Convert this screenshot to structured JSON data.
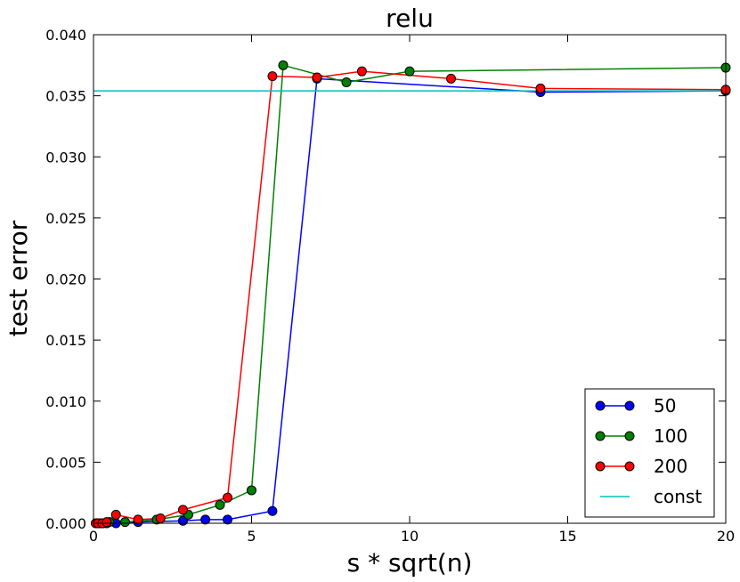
{
  "chart_data": {
    "type": "line",
    "title": "relu",
    "xlabel": "s * sqrt(n)",
    "ylabel": "test error",
    "xlim": [
      0,
      20
    ],
    "ylim": [
      0,
      0.04
    ],
    "x_ticks": [
      "0",
      "5",
      "10",
      "15",
      "20"
    ],
    "y_ticks": [
      "0.000",
      "0.005",
      "0.010",
      "0.015",
      "0.020",
      "0.025",
      "0.030",
      "0.035",
      "0.040"
    ],
    "grid": false,
    "legend_position": "bottom-right",
    "series": [
      {
        "name": "50",
        "color": "#0000ff",
        "marker": "circle",
        "x": [
          0.14,
          0.28,
          0.42,
          0.71,
          1.41,
          2.83,
          3.54,
          4.24,
          5.66,
          7.07,
          14.14,
          20.0
        ],
        "y": [
          0.0,
          0.0,
          0.0,
          0.0,
          0.0001,
          0.0002,
          0.0003,
          0.0003,
          0.001,
          0.0364,
          0.0353,
          0.0354
        ]
      },
      {
        "name": "100",
        "color": "#008000",
        "marker": "circle",
        "x": [
          0.1,
          0.2,
          0.3,
          0.5,
          1.0,
          2.0,
          3.0,
          4.0,
          5.0,
          6.0,
          8.0,
          10.0,
          20.0
        ],
        "y": [
          0.0,
          0.0,
          0.0,
          0.0001,
          0.0001,
          0.0003,
          0.0007,
          0.0015,
          0.0027,
          0.0375,
          0.0361,
          0.037,
          0.0373
        ]
      },
      {
        "name": "200",
        "color": "#ff0000",
        "marker": "circle",
        "x": [
          0.07,
          0.14,
          0.28,
          0.42,
          0.71,
          1.41,
          2.12,
          2.83,
          4.24,
          5.66,
          7.07,
          8.49,
          11.31,
          14.14,
          20.0
        ],
        "y": [
          0.0,
          0.0,
          0.0,
          0.0001,
          0.0007,
          0.0003,
          0.0004,
          0.0011,
          0.0021,
          0.0366,
          0.0365,
          0.037,
          0.0364,
          0.0356,
          0.0355
        ]
      },
      {
        "name": "const",
        "color": "#00bfbf",
        "marker": "none",
        "x": [
          0,
          20
        ],
        "y": [
          0.0354,
          0.0354
        ]
      }
    ]
  }
}
